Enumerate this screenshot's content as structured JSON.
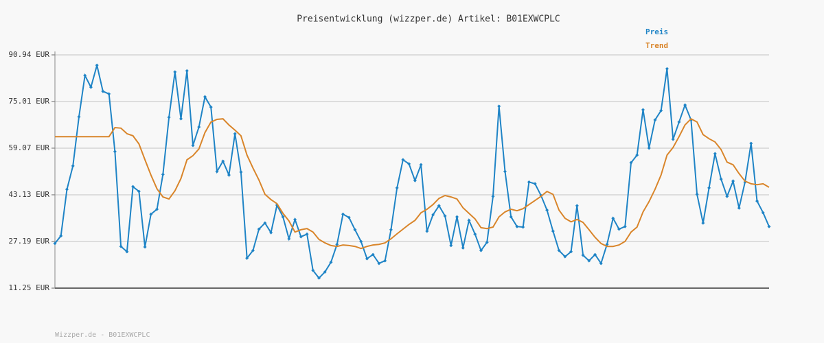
{
  "chart_data": {
    "type": "line",
    "title": "Preisentwicklung (wizzper.de) Artikel: B01EXWCPLC",
    "footer": "Wizzper.de - B01EXWCPLC",
    "categories": [
      null,
      null,
      null,
      null,
      null,
      null,
      null,
      null,
      null,
      null,
      null,
      null,
      null,
      null,
      null,
      null,
      null,
      null,
      null,
      null,
      null,
      null,
      null,
      null,
      null,
      null,
      null,
      null,
      null,
      null,
      null,
      null,
      null,
      null,
      null,
      null,
      null,
      null,
      null,
      null,
      null,
      null,
      null,
      null,
      null,
      null,
      null,
      null,
      null,
      null,
      null,
      null,
      null,
      null,
      null,
      null,
      null,
      null,
      null,
      null,
      null,
      null,
      null,
      null,
      null,
      null,
      null,
      null,
      null,
      null,
      null,
      null,
      null,
      null,
      null,
      null,
      null,
      null,
      null,
      null,
      null,
      null,
      null,
      null,
      null,
      null,
      null,
      null,
      null,
      null,
      null,
      null,
      null,
      null,
      null,
      null,
      null,
      null,
      null,
      null,
      null,
      null,
      null,
      null,
      null,
      null,
      null,
      null,
      null,
      null,
      null,
      null,
      null,
      null,
      null,
      null,
      null,
      null,
      null,
      null
    ],
    "series": [
      {
        "name": "Preis",
        "color": "#1f84c6",
        "markers": true,
        "values": [
          26.5,
          29.1,
          45.0,
          53.0,
          69.8,
          83.9,
          79.9,
          87.4,
          78.5,
          77.6,
          57.9,
          25.5,
          23.7,
          45.9,
          44.3,
          25.3,
          36.5,
          38.2,
          50.1,
          69.6,
          85.1,
          69.1,
          85.5,
          60.0,
          66.3,
          76.6,
          73.1,
          51.1,
          54.6,
          49.9,
          64.0,
          50.9,
          21.5,
          24.1,
          31.4,
          33.5,
          30.2,
          39.6,
          35.6,
          28.1,
          34.7,
          28.8,
          29.7,
          17.3,
          14.7,
          16.8,
          20.1,
          26.2,
          36.5,
          35.4,
          31.2,
          27.2,
          21.3,
          22.7,
          19.7,
          20.6,
          31.2,
          45.5,
          55.1,
          53.7,
          48.0,
          53.4,
          30.7,
          36.3,
          39.4,
          35.9,
          25.8,
          35.6,
          25.0,
          34.4,
          29.7,
          24.1,
          26.9,
          42.6,
          73.4,
          51.1,
          35.6,
          32.3,
          32.1,
          47.5,
          46.9,
          42.9,
          37.9,
          30.7,
          24.1,
          22.0,
          23.7,
          39.4,
          22.5,
          20.6,
          22.7,
          19.7,
          26.2,
          35.1,
          31.4,
          32.3,
          54.1,
          56.7,
          72.2,
          59.1,
          68.7,
          71.9,
          86.2,
          62.1,
          68.0,
          73.8,
          68.7,
          43.3,
          33.5,
          45.5,
          57.2,
          48.5,
          42.6,
          47.8,
          38.6,
          47.5,
          60.7,
          41.0,
          37.0,
          32.3
        ]
      },
      {
        "name": "Trend",
        "color": "#d9852a",
        "markers": false,
        "values": [
          63.0,
          63.0,
          63.0,
          63.0,
          63.0,
          63.0,
          63.0,
          63.0,
          63.0,
          63.0,
          66.1,
          65.9,
          64.0,
          63.3,
          60.5,
          55.1,
          49.9,
          45.2,
          42.4,
          41.7,
          44.5,
          48.7,
          55.1,
          56.5,
          58.8,
          64.4,
          68.0,
          68.9,
          69.1,
          67.0,
          65.2,
          63.3,
          56.7,
          52.3,
          48.2,
          43.3,
          41.5,
          40.1,
          36.8,
          34.2,
          30.4,
          31.2,
          31.6,
          30.4,
          27.9,
          26.7,
          25.8,
          25.5,
          26.0,
          25.8,
          25.5,
          24.8,
          25.5,
          26.0,
          26.2,
          26.7,
          28.1,
          29.8,
          31.4,
          33.0,
          34.4,
          37.0,
          38.2,
          39.8,
          41.9,
          42.9,
          42.4,
          41.7,
          38.7,
          36.8,
          34.9,
          31.9,
          31.6,
          32.1,
          35.6,
          37.3,
          38.2,
          37.7,
          38.4,
          39.8,
          41.2,
          42.6,
          44.3,
          43.3,
          37.9,
          35.1,
          33.9,
          34.7,
          33.7,
          31.2,
          28.6,
          26.5,
          25.5,
          25.5,
          26.0,
          27.2,
          30.4,
          32.1,
          37.3,
          40.8,
          45.0,
          49.9,
          56.7,
          59.3,
          63.0,
          67.0,
          69.1,
          68.0,
          63.7,
          62.3,
          61.2,
          58.6,
          54.3,
          53.4,
          50.4,
          47.8,
          46.9,
          46.6,
          46.9,
          45.7
        ]
      }
    ],
    "ylim": [
      11.25,
      90.94
    ],
    "yticks": [
      {
        "value": 11.25,
        "label": "11.25 EUR"
      },
      {
        "value": 27.19,
        "label": "27.19 EUR"
      },
      {
        "value": 43.13,
        "label": "43.13 EUR"
      },
      {
        "value": 59.07,
        "label": "59.07 EUR"
      },
      {
        "value": 75.01,
        "label": "75.01 EUR"
      },
      {
        "value": 90.94,
        "label": "90.94 EUR"
      }
    ],
    "grid": true
  }
}
